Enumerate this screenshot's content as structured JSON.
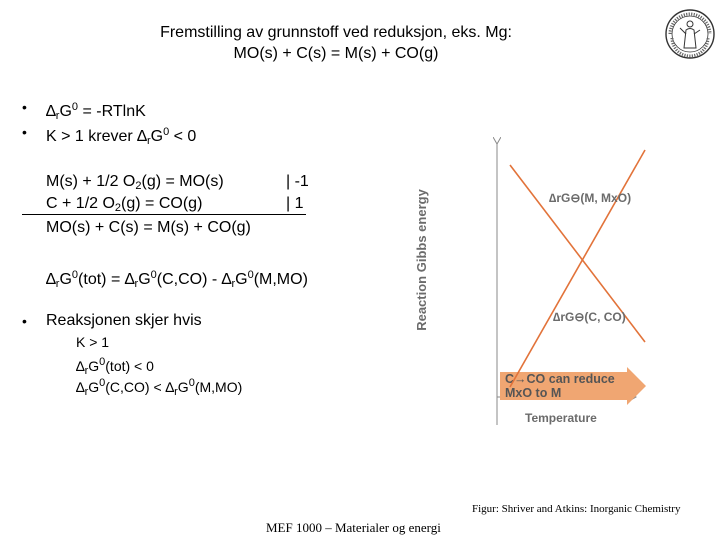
{
  "title": {
    "line1": "Fremstilling av grunnstoff ved reduksjon, eks. Mg:",
    "line2": "MO(s) + C(s) = M(s) + CO(g)"
  },
  "bullets": {
    "b1": {
      "prefix": "∆",
      "sub": "r",
      "mid": "G",
      "sup": "0",
      "rest": " = -RTlnK"
    },
    "b2": {
      "prefix": "K > 1 krever ∆",
      "sub": "r",
      "mid": "G",
      "sup": "0",
      "rest": " < 0"
    },
    "b3": "Reaksjonen skjer hvis"
  },
  "equations": {
    "eq1": {
      "left": "M(s) + 1/2 O",
      "sub": "2",
      "right": "(g) = MO(s)",
      "factor": "| -1"
    },
    "eq2": {
      "left": "C + 1/2 O",
      "sub": "2",
      "right": "(g) = CO(g)",
      "factor": "| 1"
    },
    "sum": "MO(s) + C(s) = M(s) + CO(g)"
  },
  "total": {
    "p1": "∆",
    "s1": "r",
    "p2": "G",
    "u1": "0",
    "p3": "(tot) = ∆",
    "s2": "r",
    "p4": "G",
    "u2": "0",
    "p5": "(C,CO) - ∆",
    "s3": "r",
    "p6": "G",
    "u3": "0",
    "p7": "(M,MO)"
  },
  "conditions": {
    "c1": "K > 1",
    "c2": {
      "p1": "∆",
      "s1": "r",
      "p2": "G",
      "u1": "0",
      "p3": "(tot) < 0"
    },
    "c3": {
      "p1": "∆",
      "s1": "r",
      "p2": "G",
      "u1": "0",
      "p3": "(C,CO) < ∆",
      "s2": "r",
      "p4": "G",
      "u2": "0",
      "p5": "(M,MO)"
    }
  },
  "chart_data": {
    "type": "line",
    "ylabel": "Reaction Gibbs energy",
    "xlabel": "Temperature",
    "series": [
      {
        "name": "∆rG⊖(M, MxO)",
        "color": "#e2733a",
        "trend": "increasing"
      },
      {
        "name": "∆rG⊖(C, CO)",
        "color": "#e2733a",
        "trend": "decreasing"
      }
    ],
    "arrow_text": {
      "line1": "C→CO  can  reduce",
      "line2": "MxO  to  M"
    },
    "arrow_color": "#f0a672"
  },
  "credit": "Figur: Shriver and Atkins: Inorganic Chemistry",
  "footer": "MEF 1000 – Materialer og energi",
  "seal": {
    "alt": "university seal"
  }
}
